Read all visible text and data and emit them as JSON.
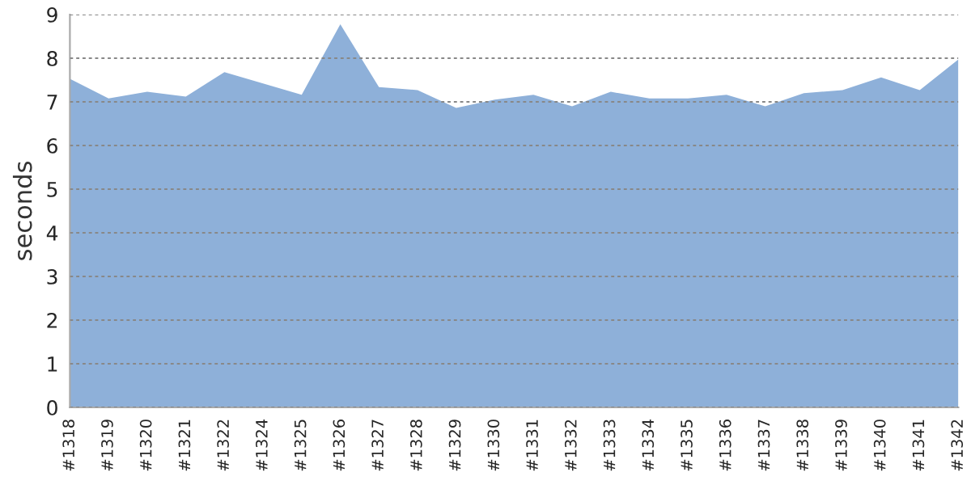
{
  "chart_data": {
    "type": "area",
    "ylabel": "seconds",
    "categories": [
      "#1318",
      "#1319",
      "#1320",
      "#1321",
      "#1322",
      "#1324",
      "#1325",
      "#1326",
      "#1327",
      "#1328",
      "#1329",
      "#1330",
      "#1331",
      "#1332",
      "#1333",
      "#1334",
      "#1335",
      "#1336",
      "#1337",
      "#1338",
      "#1339",
      "#1340",
      "#1341",
      "#1342"
    ],
    "series": [
      {
        "color": "#8eb0d9",
        "values": [
          7.53,
          7.08,
          7.23,
          7.12,
          7.68,
          7.42,
          7.16,
          8.78,
          7.34,
          7.27,
          6.86,
          7.05,
          7.16,
          6.9,
          7.23,
          7.08,
          7.08,
          7.16,
          6.9,
          7.2,
          7.27,
          7.56,
          7.27,
          7.97
        ]
      }
    ],
    "ylim": [
      0,
      9
    ],
    "yticks": [
      0,
      1,
      2,
      3,
      4,
      5,
      6,
      7,
      8,
      9
    ],
    "grid": "y",
    "legend": false
  }
}
